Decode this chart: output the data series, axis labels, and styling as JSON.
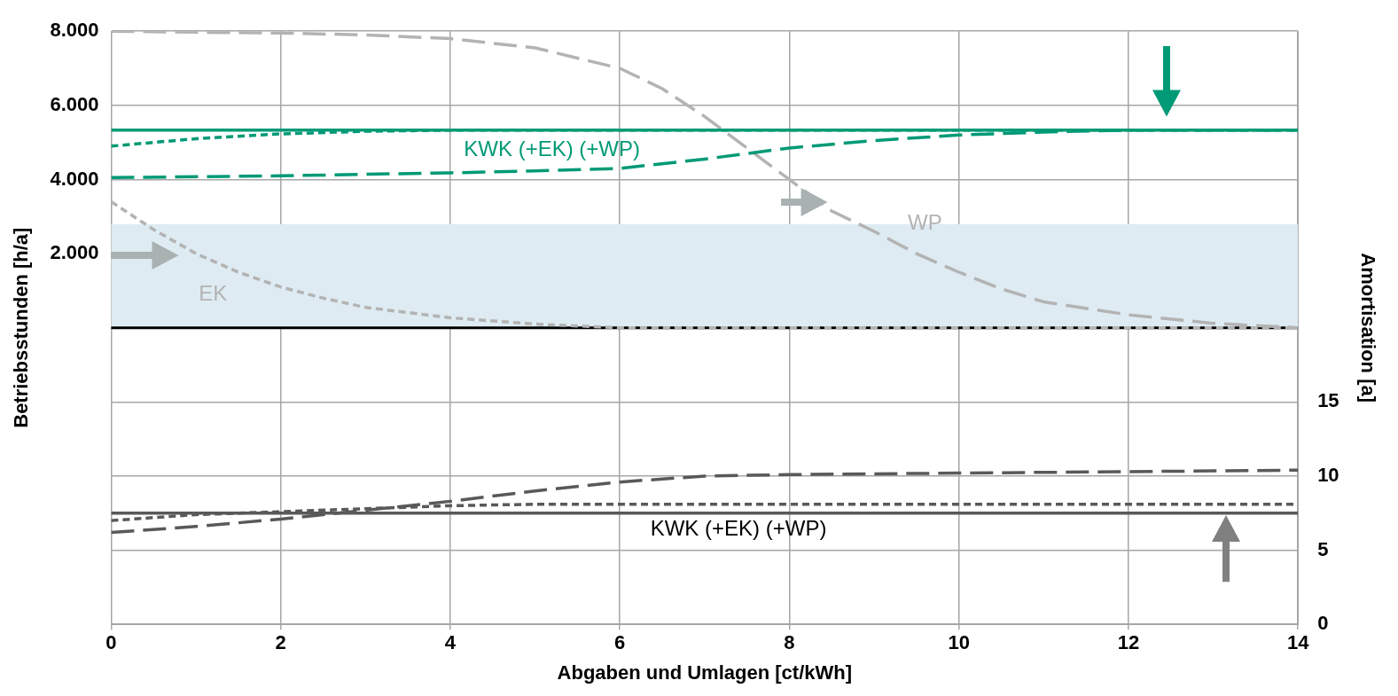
{
  "chart_data": {
    "type": "line",
    "xlabel": "Abgaben und Umlagen [ct/kWh]",
    "ylabel": "Betriebsstunden [h/a]",
    "y2label": "Amortisation [a]",
    "xlim": [
      0,
      14
    ],
    "xticks": [
      0,
      2,
      4,
      6,
      8,
      10,
      12,
      14
    ],
    "ylim": [
      -8000,
      8000
    ],
    "yticks": [
      {
        "value": -8000,
        "label": null
      },
      {
        "value": -6000,
        "label": null
      },
      {
        "value": -4000,
        "label": null
      },
      {
        "value": -2000,
        "label": null
      },
      {
        "value": 0,
        "label": null
      },
      {
        "value": 2000,
        "label": "2.000"
      },
      {
        "value": 4000,
        "label": "4.000"
      },
      {
        "value": 6000,
        "label": "6.000"
      },
      {
        "value": 8000,
        "label": "8.000"
      }
    ],
    "y2lim": [
      0,
      40
    ],
    "y2ticks": [
      0,
      5,
      10,
      15
    ],
    "grid": true,
    "legend": false,
    "marker": "none",
    "bands": [
      {
        "axis": "y",
        "from": 0,
        "to": 2800,
        "color": "#deebf2"
      }
    ],
    "ref_lines": [
      {
        "axis": "y",
        "value": 0,
        "color": "#000000"
      }
    ],
    "annotations": [
      "KWK (+EK) (+WP)",
      "WP",
      "EK",
      "KWK (+EK) (+WP)"
    ],
    "series": [
      {
        "color": "#009a76",
        "line_style": "solid",
        "x": [
          0,
          14
        ],
        "values": [
          5330,
          5330
        ]
      },
      {
        "color": "#009a76",
        "line_style": "dotted",
        "x": [
          0,
          1,
          2,
          3,
          4,
          6,
          14
        ],
        "values": [
          4900,
          5100,
          5230,
          5300,
          5330,
          5330,
          5330
        ]
      },
      {
        "color": "#009a76",
        "line_style": "dashed",
        "x": [
          0,
          2,
          4,
          5,
          6,
          7,
          8,
          9,
          10,
          11,
          12,
          14
        ],
        "values": [
          4050,
          4100,
          4180,
          4230,
          4300,
          4550,
          4850,
          5050,
          5200,
          5280,
          5330,
          5330
        ]
      },
      {
        "color": "#b3b3b3",
        "line_style": "dashed",
        "x": [
          0,
          2,
          3,
          4,
          5,
          6,
          6.5,
          7,
          7.5,
          8,
          8.5,
          9,
          9.5,
          10,
          10.5,
          11,
          12,
          13,
          14
        ],
        "values": [
          8000,
          7950,
          7900,
          7800,
          7550,
          7000,
          6450,
          5700,
          4850,
          4000,
          3150,
          2600,
          2000,
          1500,
          1050,
          700,
          350,
          120,
          0
        ]
      },
      {
        "color": "#b3b3b3",
        "line_style": "dotted",
        "x": [
          0,
          0.5,
          1,
          1.5,
          2,
          2.5,
          3,
          4,
          5,
          6,
          14
        ],
        "values": [
          3400,
          2650,
          2000,
          1500,
          1100,
          800,
          550,
          270,
          100,
          0,
          0
        ]
      },
      {
        "color": "#595959",
        "line_style": "solid",
        "axis": "y2",
        "x": [
          0,
          14
        ],
        "values": [
          7.5,
          7.5
        ]
      },
      {
        "color": "#595959",
        "line_style": "dotted",
        "axis": "y2",
        "x": [
          0,
          1,
          2,
          3,
          4,
          5,
          14
        ],
        "values": [
          7.0,
          7.4,
          7.6,
          7.8,
          8.0,
          8.1,
          8.1
        ]
      },
      {
        "color": "#595959",
        "line_style": "dashed",
        "axis": "y2",
        "x": [
          0,
          1,
          2,
          3,
          4,
          5,
          6,
          7,
          8,
          10,
          12,
          14
        ],
        "values": [
          6.2,
          6.6,
          7.1,
          7.7,
          8.3,
          9.0,
          9.6,
          10.0,
          10.1,
          10.2,
          10.3,
          10.4
        ]
      }
    ]
  }
}
